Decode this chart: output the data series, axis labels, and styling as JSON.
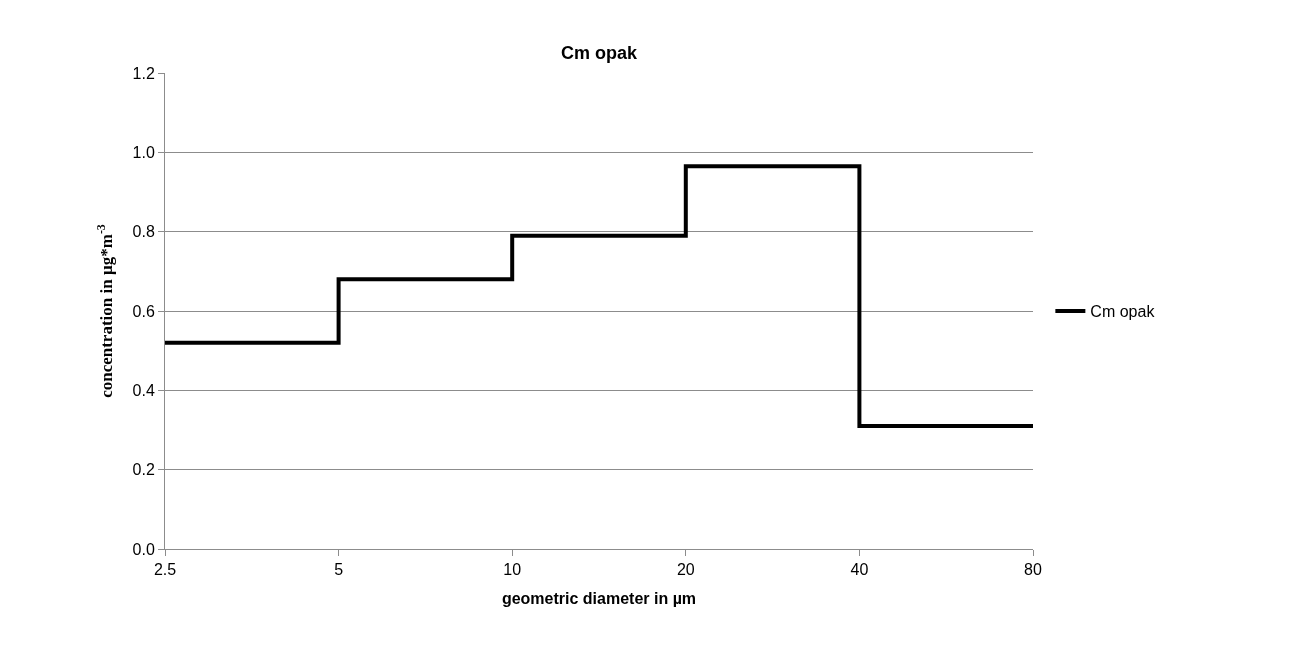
{
  "chart_data": {
    "type": "step",
    "title": "Cm opak",
    "xlabel": "geometric diameter in µm",
    "ylabel": "concentration in µg*m$^{-3}$",
    "x": [
      2.5,
      5,
      10,
      20,
      40,
      80
    ],
    "series": [
      {
        "name": "Cm opak",
        "color": "#000000",
        "values": [
          0.52,
          0.68,
          0.79,
          0.965,
          0.31,
          0.31
        ]
      }
    ],
    "log": "x",
    "xlim": [
      2.5,
      80
    ],
    "xticks": [
      2.5,
      5,
      10,
      20,
      40,
      80
    ],
    "ylim": [
      0,
      1.2
    ],
    "yticks": [
      {
        "value": 0,
        "label": "0.0"
      },
      {
        "value": 0.2,
        "label": "0.2"
      },
      {
        "value": 0.4,
        "label": "0.4"
      },
      {
        "value": 0.6,
        "label": "0.6"
      },
      {
        "value": 0.8,
        "label": "0.8"
      },
      {
        "value": 1.0,
        "label": "1.0"
      },
      {
        "value": 1.2,
        "label": "1.2"
      }
    ],
    "grid": "y",
    "legend": "right",
    "marker": "none",
    "line_style": "solid"
  }
}
